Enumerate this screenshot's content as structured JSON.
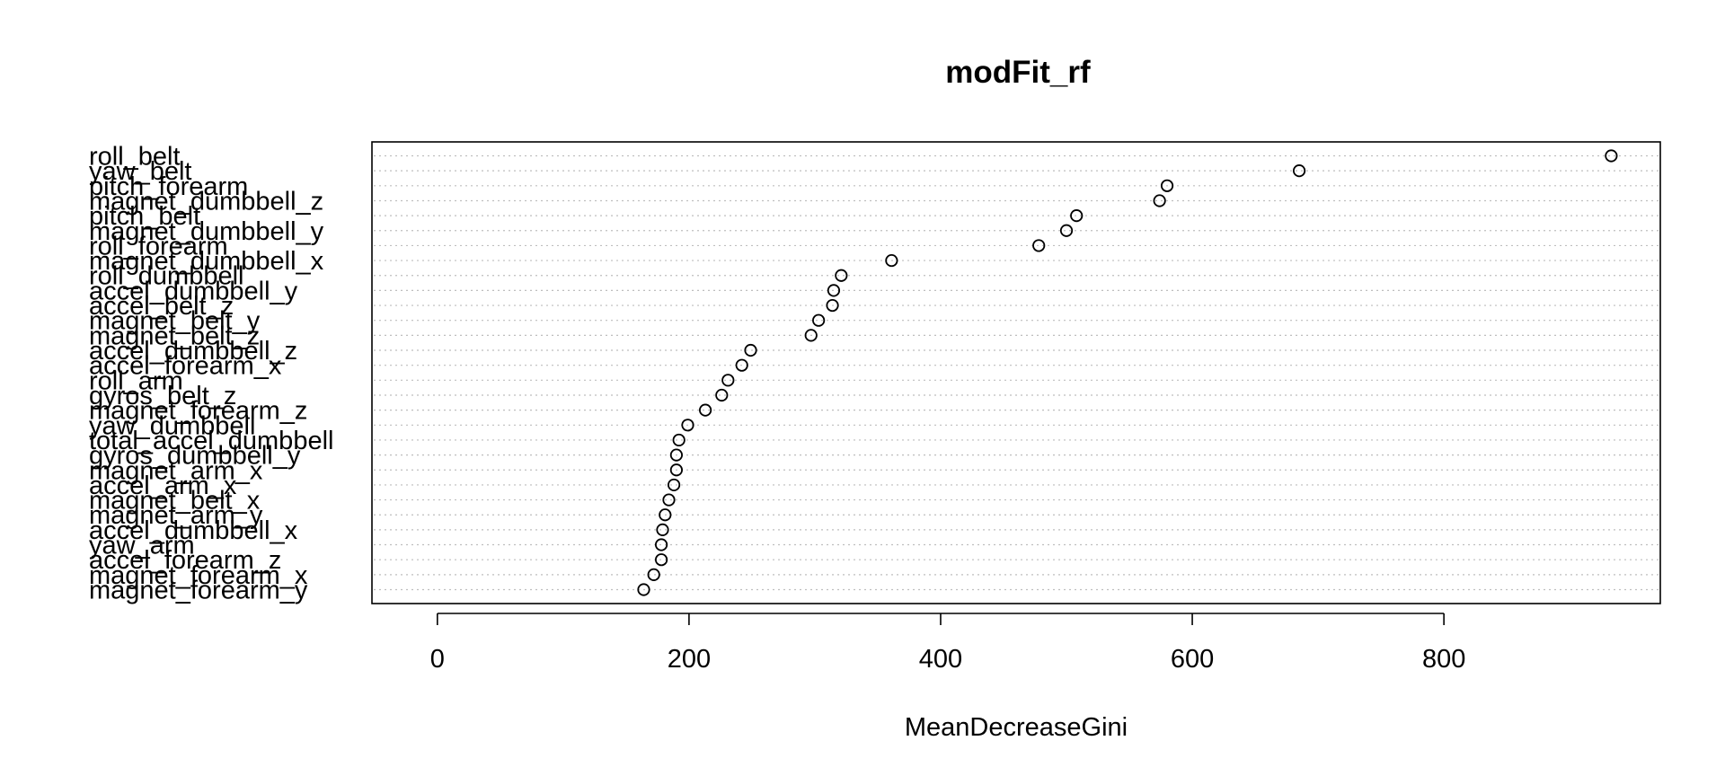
{
  "chart_data": {
    "type": "scatter",
    "title": "modFit_rf",
    "xlabel": "MeanDecreaseGini",
    "ylabel": "",
    "xlim": [
      -52,
      972
    ],
    "xticks": [
      0,
      200,
      400,
      600,
      800
    ],
    "grid": "dotted horizontal lines at each variable",
    "legend": "none",
    "colors": {
      "points": "#000000",
      "grid": "#bebebe",
      "frame": "#000000"
    },
    "categories": [
      "roll_belt",
      "yaw_belt",
      "pitch_forearm",
      "magnet_dumbbell_z",
      "pitch_belt",
      "magnet_dumbbell_y",
      "roll_forearm",
      "magnet_dumbbell_x",
      "roll_dumbbell",
      "accel_dumbbell_y",
      "accel_belt_z",
      "magnet_belt_y",
      "magnet_belt_z",
      "accel_dumbbell_z",
      "accel_forearm_x",
      "roll_arm",
      "gyros_belt_z",
      "magnet_forearm_z",
      "yaw_dumbbell",
      "total_accel_dumbbell",
      "gyros_dumbbell_y",
      "magnet_arm_x",
      "accel_arm_x",
      "magnet_belt_x",
      "magnet_arm_y",
      "accel_dumbbell_x",
      "yaw_arm",
      "accel_forearm_z",
      "magnet_forearm_x",
      "magnet_forearm_y"
    ],
    "values": [
      933,
      685,
      580,
      574,
      508,
      500,
      478,
      361,
      321,
      315,
      314,
      303,
      297,
      249,
      242,
      231,
      226,
      213,
      199,
      192,
      190,
      190,
      188,
      184,
      181,
      179,
      178,
      178,
      172,
      164
    ]
  }
}
